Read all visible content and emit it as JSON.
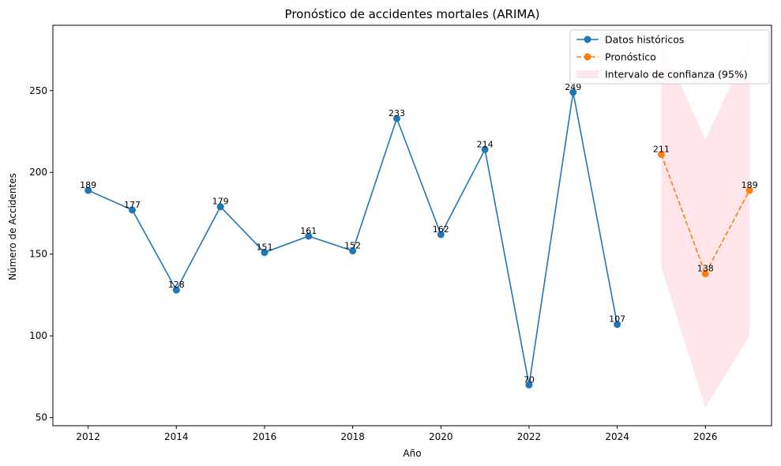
{
  "chart_data": {
    "type": "line",
    "title": "Pronóstico de accidentes mortales (ARIMA)",
    "xlabel": "Año",
    "ylabel": "Número de Accidentes",
    "xlim": [
      2011.2,
      2027.5
    ],
    "ylim": [
      45,
      290
    ],
    "xticks": [
      2012,
      2014,
      2016,
      2018,
      2020,
      2022,
      2024,
      2026
    ],
    "yticks": [
      50,
      100,
      150,
      200,
      250
    ],
    "grid": false,
    "legend_position": "top-right",
    "series": [
      {
        "name": "Datos históricos",
        "color": "#1f77b4",
        "style": "solid",
        "x": [
          2012,
          2013,
          2014,
          2015,
          2016,
          2017,
          2018,
          2019,
          2020,
          2021,
          2022,
          2023,
          2024
        ],
        "values": [
          189,
          177,
          128,
          179,
          151,
          161,
          152,
          233,
          162,
          214,
          70,
          249,
          107
        ]
      },
      {
        "name": "Pronóstico",
        "color": "#ff7f0e",
        "style": "dashed",
        "x": [
          2025,
          2026,
          2027
        ],
        "values": [
          211,
          138,
          189
        ]
      }
    ],
    "confidence_interval": {
      "name": "Intervalo de confianza (95%)",
      "color": "#ffc0cb",
      "x": [
        2025,
        2026,
        2027
      ],
      "lower": [
        142,
        56,
        100
      ],
      "upper": [
        280,
        220,
        278
      ]
    }
  }
}
